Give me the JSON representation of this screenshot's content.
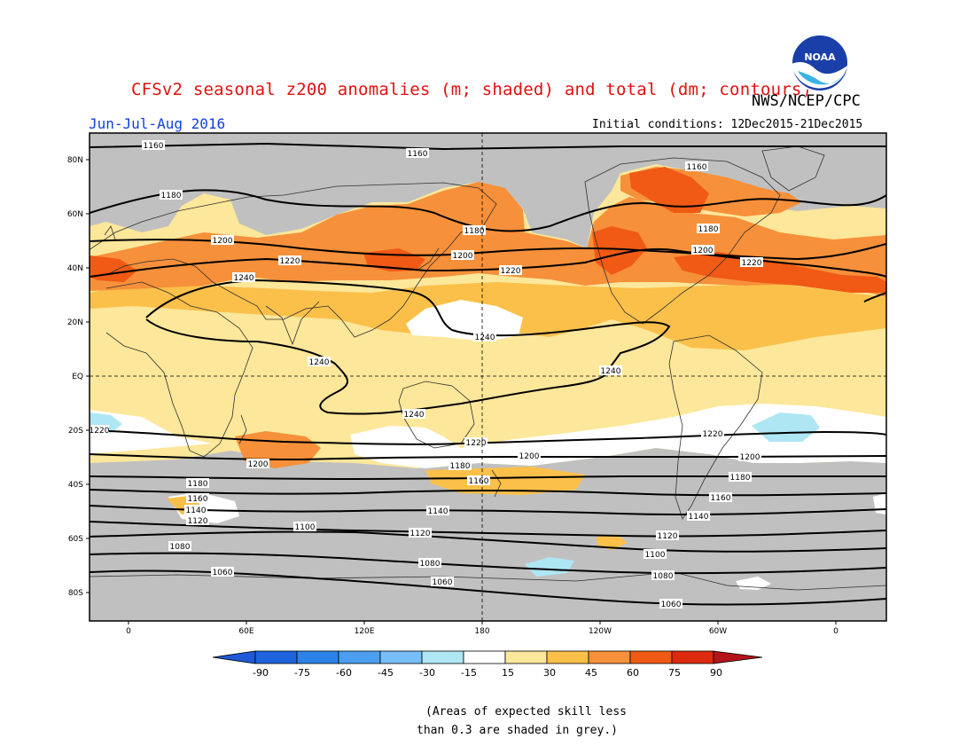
{
  "header": {
    "title": "CFSv2 seasonal z200 anomalies (m; shaded) and total (dm; contours)",
    "agency": "NWS/NCEP/CPC",
    "logo_text": "NOAA",
    "season": "Jun-Jul-Aug 2016",
    "initial_conditions": "Initial conditions: 12Dec2015-21Dec2015"
  },
  "map": {
    "lat_labels": [
      "80N",
      "60N",
      "40N",
      "20N",
      "EQ",
      "20S",
      "40S",
      "60S",
      "80S"
    ],
    "lon_labels": [
      "0",
      "60E",
      "120E",
      "180",
      "120W",
      "60W",
      "0"
    ],
    "contour_labels": [
      "1160",
      "1180",
      "1200",
      "1220",
      "1240",
      "1140",
      "1120",
      "1100",
      "1080",
      "1060"
    ],
    "colors": {
      "grey_mask": "#c0c0c0",
      "yellow": "#fde79a",
      "light_orange": "#fbc04a",
      "orange": "#f7903a",
      "red_orange": "#f05a14",
      "red": "#dc2a0e",
      "light_blue": "#aeeef4",
      "white": "#ffffff"
    }
  },
  "colorbar": {
    "labels": [
      "-90",
      "-75",
      "-60",
      "-45",
      "-30",
      "-15",
      "15",
      "30",
      "45",
      "60",
      "75",
      "90"
    ],
    "colors": [
      "#1e64dc",
      "#2c82e6",
      "#4aa0ee",
      "#78befa",
      "#aee6f4",
      "#ffffff",
      "#fde79a",
      "#fbc04a",
      "#f7903a",
      "#f05a14",
      "#dc2a0e"
    ],
    "end_low": "#1e5ad8",
    "end_high": "#b4141a"
  },
  "footnote": {
    "line1": "(Areas of expected skill less",
    "line2": "than 0.3 are shaded in grey.)"
  }
}
